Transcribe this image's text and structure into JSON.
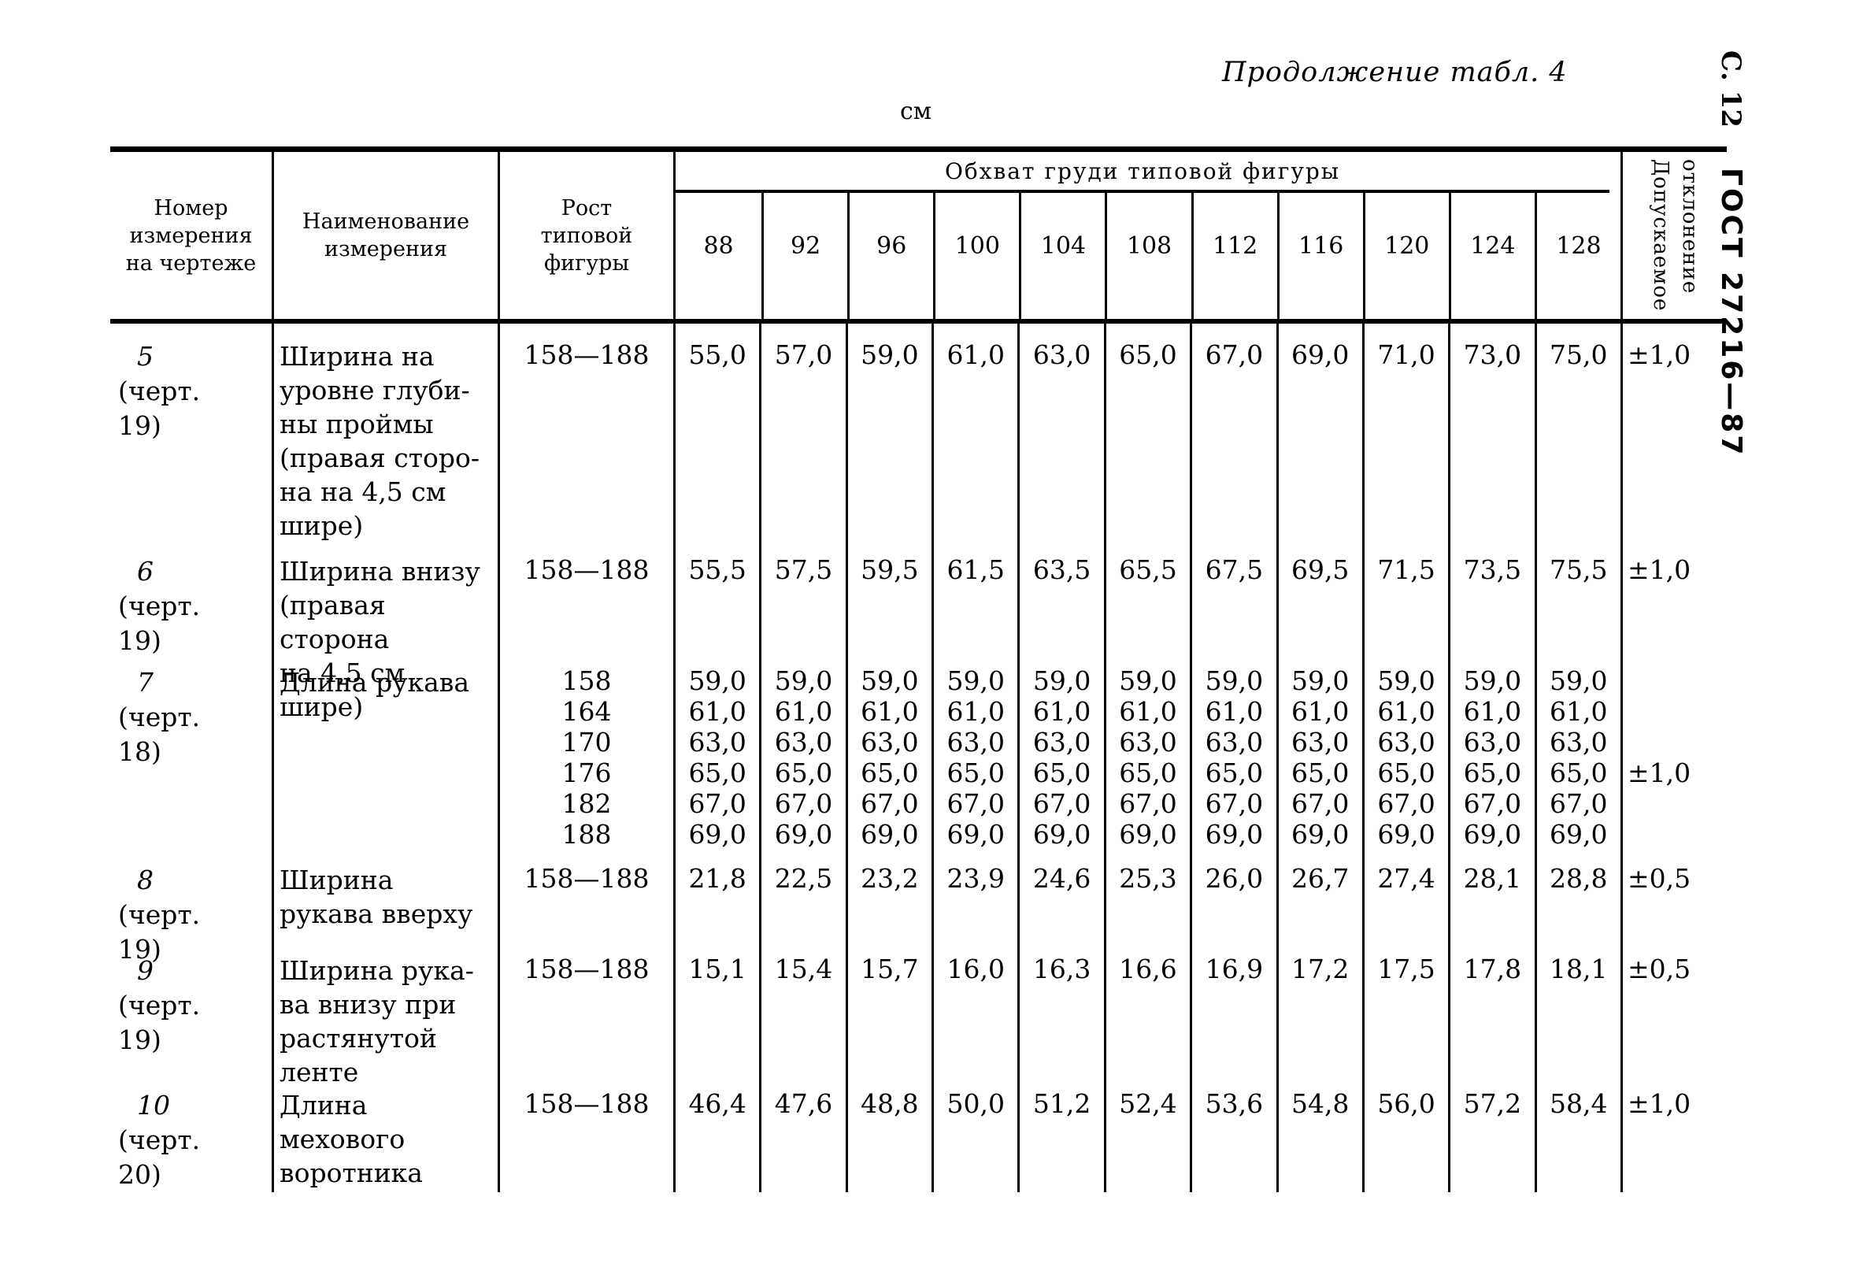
{
  "page": {
    "continuation_title": "Продолжение табл. 4",
    "unit_label": "см",
    "page_marker": "С.  12",
    "gost_marker": "ГОСТ 27216—87"
  },
  "table": {
    "headers": {
      "col_number": "Номер\nизмерения\nна чертеже",
      "col_name": "Наименование\nизмерения",
      "col_height": "Рост\nтиповой\nфигуры",
      "chest_group": "Обхват груди типовой фигуры",
      "chest_sizes": [
        "88",
        "92",
        "96",
        "100",
        "104",
        "108",
        "112",
        "116",
        "120",
        "124",
        "128"
      ],
      "col_tolerance": "Допускаемое\nотклонение"
    },
    "rows": [
      {
        "number": "5",
        "ref": [
          "(черт.",
          "19)"
        ],
        "name": [
          "Ширина на",
          "уровне глуби-",
          "ны проймы",
          "(правая сторо-",
          "на на 4,5 см",
          "шире)"
        ],
        "heights": [
          "158—188"
        ],
        "values": [
          [
            "55,0"
          ],
          [
            "57,0"
          ],
          [
            "59,0"
          ],
          [
            "61,0"
          ],
          [
            "63,0"
          ],
          [
            "65,0"
          ],
          [
            "67,0"
          ],
          [
            "69,0"
          ],
          [
            "71,0"
          ],
          [
            "73,0"
          ],
          [
            "75,0"
          ]
        ],
        "tolerance": "±1,0"
      },
      {
        "number": "6",
        "ref": [
          "(черт.",
          "19)"
        ],
        "name": [
          "Ширина внизу",
          "(правая сторона",
          "на 4,5 см шире)"
        ],
        "heights": [
          "158—188"
        ],
        "values": [
          [
            "55,5"
          ],
          [
            "57,5"
          ],
          [
            "59,5"
          ],
          [
            "61,5"
          ],
          [
            "63,5"
          ],
          [
            "65,5"
          ],
          [
            "67,5"
          ],
          [
            "69,5"
          ],
          [
            "71,5"
          ],
          [
            "73,5"
          ],
          [
            "75,5"
          ]
        ],
        "tolerance": "±1,0"
      },
      {
        "number": "7",
        "ref": [
          "(черт.",
          "18)"
        ],
        "name": [
          "Длина рукава"
        ],
        "heights": [
          "158",
          "164",
          "170",
          "176",
          "182",
          "188"
        ],
        "values": [
          [
            "59,0",
            "61,0",
            "63,0",
            "65,0",
            "67,0",
            "69,0"
          ],
          [
            "59,0",
            "61,0",
            "63,0",
            "65,0",
            "67,0",
            "69,0"
          ],
          [
            "59,0",
            "61,0",
            "63,0",
            "65,0",
            "67,0",
            "69,0"
          ],
          [
            "59,0",
            "61,0",
            "63,0",
            "65,0",
            "67,0",
            "69,0"
          ],
          [
            "59,0",
            "61,0",
            "63,0",
            "65,0",
            "67,0",
            "69,0"
          ],
          [
            "59,0",
            "61,0",
            "63,0",
            "65,0",
            "67,0",
            "69,0"
          ],
          [
            "59,0",
            "61,0",
            "63,0",
            "65,0",
            "67,0",
            "69,0"
          ],
          [
            "59,0",
            "61,0",
            "63,0",
            "65,0",
            "67,0",
            "69,0"
          ],
          [
            "59,0",
            "61,0",
            "63,0",
            "65,0",
            "67,0",
            "69,0"
          ],
          [
            "59,0",
            "61,0",
            "63,0",
            "65,0",
            "67,0",
            "69,0"
          ],
          [
            "59,0",
            "61,0",
            "63,0",
            "65,0",
            "67,0",
            "69,0"
          ]
        ],
        "tolerance": "±1,0"
      },
      {
        "number": "8",
        "ref": [
          "(черт.",
          "19)"
        ],
        "name": [
          "Ширина",
          "рукава вверху"
        ],
        "heights": [
          "158—188"
        ],
        "values": [
          [
            "21,8"
          ],
          [
            "22,5"
          ],
          [
            "23,2"
          ],
          [
            "23,9"
          ],
          [
            "24,6"
          ],
          [
            "25,3"
          ],
          [
            "26,0"
          ],
          [
            "26,7"
          ],
          [
            "27,4"
          ],
          [
            "28,1"
          ],
          [
            "28,8"
          ]
        ],
        "tolerance": "±0,5"
      },
      {
        "number": "9",
        "ref": [
          "(черт.",
          "19)"
        ],
        "name": [
          "Ширина рука-",
          "ва внизу при",
          "растянутой",
          "ленте"
        ],
        "heights": [
          "158—188"
        ],
        "values": [
          [
            "15,1"
          ],
          [
            "15,4"
          ],
          [
            "15,7"
          ],
          [
            "16,0"
          ],
          [
            "16,3"
          ],
          [
            "16,6"
          ],
          [
            "16,9"
          ],
          [
            "17,2"
          ],
          [
            "17,5"
          ],
          [
            "17,8"
          ],
          [
            "18,1"
          ]
        ],
        "tolerance": "±0,5"
      },
      {
        "number": "10",
        "ref": [
          "(черт.",
          "20)"
        ],
        "name": [
          "Длина мехового",
          "воротника"
        ],
        "heights": [
          "158—188"
        ],
        "values": [
          [
            "46,4"
          ],
          [
            "47,6"
          ],
          [
            "48,8"
          ],
          [
            "50,0"
          ],
          [
            "51,2"
          ],
          [
            "52,4"
          ],
          [
            "53,6"
          ],
          [
            "54,8"
          ],
          [
            "56,0"
          ],
          [
            "57,2"
          ],
          [
            "58,4"
          ]
        ],
        "tolerance": "±1,0"
      }
    ]
  }
}
